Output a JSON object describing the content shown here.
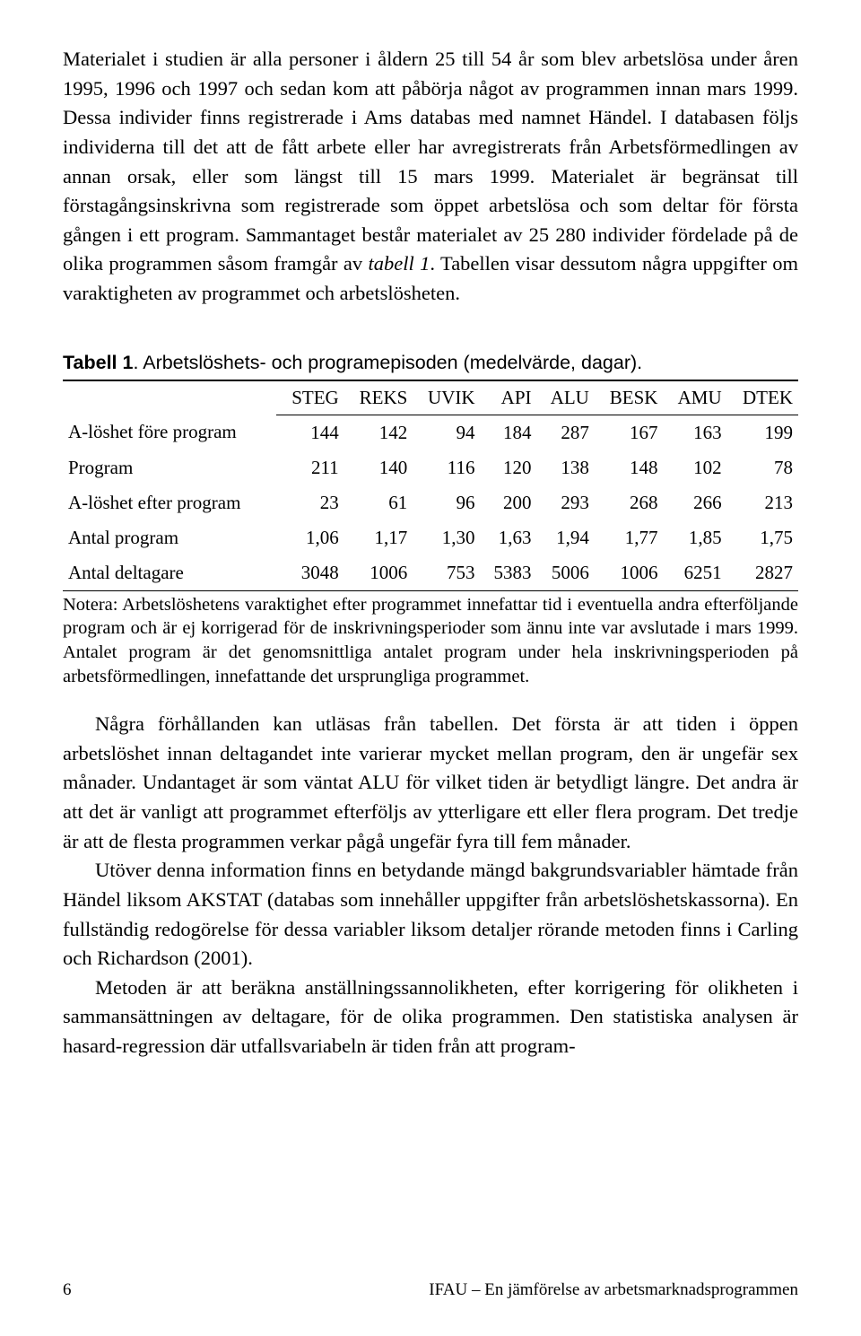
{
  "paragraphs": {
    "p1": "Materialet i studien är alla personer i åldern 25 till 54 år som blev arbetslösa under åren 1995, 1996 och 1997 och sedan kom att påbörja något av programmen innan mars 1999. Dessa individer finns registrerade i Ams databas med namnet Händel. I databasen följs individerna till det att de fått arbete eller har avregistrerats från Arbetsförmedlingen av annan orsak, eller som längst till 15 mars 1999. Materialet är begränsat till förstagångsinskrivna som registrerade som öppet arbetslösa och som deltar för första gången i ett program. Sammantaget består materialet av 25 280 individer fördelade på de olika programmen såsom framgår av ",
    "p1_italic": "tabell 1",
    "p1_tail": ". Tabellen visar dessutom några uppgifter om varaktigheten av programmet och arbetslösheten.",
    "p2_lead": "Några förhållanden kan utläsas från tabellen. Det första är att tiden i öppen arbetslöshet innan deltagandet inte varierar mycket mellan program, den är ungefär sex månader. Undantaget är som väntat ALU för vilket tiden är betydligt längre. Det andra är att det är vanligt att programmet efterföljs av ytterligare ett eller flera program. Det tredje är att de flesta programmen verkar pågå ungefär fyra till fem månader.",
    "p3": "Utöver denna information finns en betydande mängd bakgrundsvariabler hämtade från Händel liksom AKSTAT (databas som innehåller uppgifter från arbetslöshetskassorna). En fullständig redogörelse för dessa variabler liksom detaljer rörande metoden finns i Carling och Richardson (2001).",
    "p4": "Metoden är att beräkna anställningssannolikheten, efter korrigering för olikheten i sammansättningen av deltagare, för de olika programmen. Den statistiska analysen är hasard-regression där utfallsvariabeln är tiden från att program-"
  },
  "table": {
    "title_bold": "Tabell 1",
    "title_rest": ". Arbetslöshets- och programepisoden (medelvärde, dagar).",
    "columns": [
      "STEG",
      "REKS",
      "UVIK",
      "API",
      "ALU",
      "BESK",
      "AMU",
      "DTEK"
    ],
    "rows": [
      {
        "label": "A-löshet före program",
        "vals": [
          "144",
          "142",
          "94",
          "184",
          "287",
          "167",
          "163",
          "199"
        ]
      },
      {
        "label": "Program",
        "vals": [
          "211",
          "140",
          "116",
          "120",
          "138",
          "148",
          "102",
          "78"
        ]
      },
      {
        "label": "A-löshet efter program",
        "vals": [
          "23",
          "61",
          "96",
          "200",
          "293",
          "268",
          "266",
          "213"
        ]
      },
      {
        "label": "Antal program",
        "vals": [
          "1,06",
          "1,17",
          "1,30",
          "1,63",
          "1,94",
          "1,77",
          "1,85",
          "1,75"
        ]
      },
      {
        "label": "Antal deltagare",
        "vals": [
          "3048",
          "1006",
          "753",
          "5383",
          "5006",
          "1006",
          "6251",
          "2827"
        ]
      }
    ],
    "note": "Notera: Arbetslöshetens varaktighet efter programmet innefattar tid i eventuella andra efterföljande program och är ej korrigerad för de inskrivningsperioder som ännu inte var avslutade i mars 1999. Antalet program är det genomsnittliga antalet program under hela inskrivningsperioden på arbetsförmedlingen, innefattande det ursprungliga programmet."
  },
  "footer": {
    "page": "6",
    "running": "IFAU – En jämförelse av arbetsmarknadsprogrammen"
  }
}
